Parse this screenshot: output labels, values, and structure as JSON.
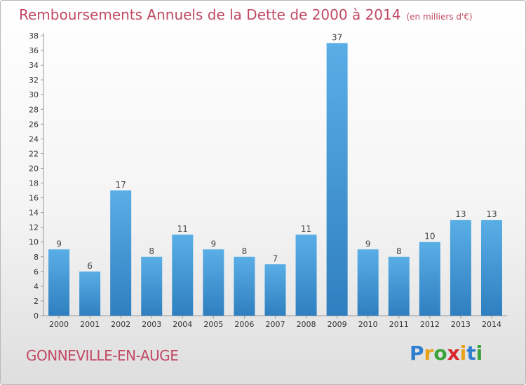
{
  "title": "Remboursements Annuels de la Dette de 2000 à 2014",
  "unit_note": "(en milliers d'€)",
  "location": "GONNEVILLE-EN-AUGE",
  "logo": {
    "letters": [
      "P",
      "r",
      "o",
      "x",
      "i",
      "t",
      "i"
    ],
    "colors": [
      "#2f7fd0",
      "#e8a21a",
      "#3aa33a",
      "#d8262d",
      "#e8a21a",
      "#2f7fd0",
      "#3aa33a"
    ]
  },
  "colors": {
    "bar": "#4a9fdc",
    "bar_dark": "#2f7fc0",
    "title": "#c04a63",
    "axis_text": "#333333"
  },
  "chart_data": {
    "type": "bar",
    "categories": [
      "2000",
      "2001",
      "2002",
      "2003",
      "2004",
      "2005",
      "2006",
      "2007",
      "2008",
      "2009",
      "2010",
      "2011",
      "2012",
      "2013",
      "2014"
    ],
    "values": [
      9,
      6,
      17,
      8,
      11,
      9,
      8,
      7,
      11,
      37,
      9,
      8,
      10,
      13,
      13
    ],
    "ylim": [
      0,
      38
    ],
    "yticks": [
      0,
      2,
      4,
      6,
      8,
      10,
      12,
      14,
      16,
      18,
      20,
      22,
      24,
      26,
      28,
      30,
      32,
      34,
      36,
      38
    ],
    "grid": false,
    "data_labels": true
  }
}
